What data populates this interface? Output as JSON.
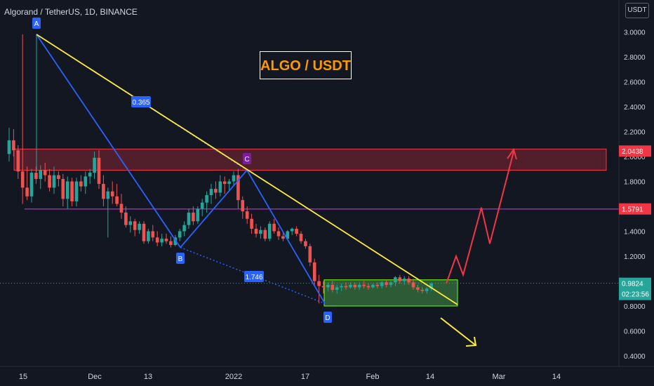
{
  "header": {
    "symbol_line": "Algorand / TetherUS, 1D, BINANCE"
  },
  "unit_badge": "USDT",
  "title_box": "ALGO / USDT",
  "colors": {
    "background": "#131722",
    "up": "#26a69a",
    "down": "#ef5350",
    "trendline": "#ffeb3b",
    "pattern_line": "#2962ff",
    "projection": "#f23645",
    "support_line": "#9c27b0",
    "resistance_zone": "#f23645",
    "support_zone": "#4caf50",
    "arrow_down": "#ffeb3b"
  },
  "chart_data": {
    "type": "candlestick",
    "y_axis": {
      "ticks": [
        "0.4000",
        "0.6000",
        "0.8000",
        "1.0000",
        "1.2000",
        "1.4000",
        "1.6000",
        "1.8000",
        "2.0000",
        "2.2000",
        "2.4000",
        "2.6000",
        "2.8000",
        "3.0000"
      ],
      "range": [
        0.35,
        3.2
      ]
    },
    "x_axis": {
      "ticks": [
        "15",
        "Dec",
        "13",
        "2022",
        "17",
        "Feb",
        "14",
        "Mar",
        "14"
      ]
    },
    "price_labels": [
      {
        "value": "2.0438",
        "kind": "resistance"
      },
      {
        "value": "1.5791",
        "kind": "support"
      },
      {
        "value": "0.9824",
        "kind": "last"
      },
      {
        "value": "02:23:56",
        "kind": "countdown"
      }
    ],
    "candles": [
      [
        2.02,
        2.23,
        1.96,
        2.13
      ],
      [
        2.13,
        2.22,
        2.0,
        2.05
      ],
      [
        2.05,
        2.09,
        1.82,
        1.88
      ],
      [
        1.88,
        2.98,
        1.62,
        1.75
      ],
      [
        1.75,
        1.92,
        1.65,
        1.68
      ],
      [
        1.68,
        1.9,
        1.63,
        1.87
      ],
      [
        1.87,
        1.92,
        1.78,
        1.82
      ],
      [
        1.82,
        1.93,
        1.74,
        1.89
      ],
      [
        1.89,
        1.95,
        1.8,
        1.85
      ],
      [
        1.85,
        1.9,
        1.72,
        1.75
      ],
      [
        1.75,
        1.92,
        1.7,
        1.85
      ],
      [
        1.85,
        1.88,
        1.76,
        1.82
      ],
      [
        1.82,
        1.86,
        1.6,
        1.66
      ],
      [
        1.66,
        1.84,
        1.58,
        1.8
      ],
      [
        1.8,
        1.83,
        1.6,
        1.64
      ],
      [
        1.64,
        1.83,
        1.6,
        1.8
      ],
      [
        1.8,
        1.85,
        1.72,
        1.76
      ],
      [
        1.76,
        1.88,
        1.7,
        1.84
      ],
      [
        1.84,
        1.9,
        1.78,
        1.87
      ],
      [
        1.87,
        2.04,
        1.82,
        1.99
      ],
      [
        1.99,
        2.05,
        1.74,
        1.78
      ],
      [
        1.78,
        1.85,
        1.6,
        1.66
      ],
      [
        1.66,
        1.75,
        1.35,
        1.72
      ],
      [
        1.72,
        1.8,
        1.62,
        1.68
      ],
      [
        1.68,
        1.78,
        1.6,
        1.62
      ],
      [
        1.62,
        1.7,
        1.5,
        1.55
      ],
      [
        1.55,
        1.6,
        1.43,
        1.45
      ],
      [
        1.45,
        1.52,
        1.39,
        1.48
      ],
      [
        1.48,
        1.5,
        1.36,
        1.41
      ],
      [
        1.41,
        1.48,
        1.38,
        1.46
      ],
      [
        1.46,
        1.48,
        1.3,
        1.32
      ],
      [
        1.32,
        1.42,
        1.3,
        1.4
      ],
      [
        1.4,
        1.45,
        1.32,
        1.35
      ],
      [
        1.35,
        1.4,
        1.28,
        1.31
      ],
      [
        1.31,
        1.38,
        1.28,
        1.34
      ],
      [
        1.34,
        1.38,
        1.3,
        1.32
      ],
      [
        1.32,
        1.36,
        1.27,
        1.29
      ],
      [
        1.29,
        1.37,
        1.28,
        1.35
      ],
      [
        1.35,
        1.42,
        1.32,
        1.4
      ],
      [
        1.4,
        1.48,
        1.36,
        1.45
      ],
      [
        1.45,
        1.58,
        1.42,
        1.55
      ],
      [
        1.55,
        1.6,
        1.45,
        1.48
      ],
      [
        1.48,
        1.6,
        1.46,
        1.58
      ],
      [
        1.58,
        1.66,
        1.52,
        1.63
      ],
      [
        1.63,
        1.72,
        1.55,
        1.69
      ],
      [
        1.69,
        1.78,
        1.62,
        1.74
      ],
      [
        1.74,
        1.8,
        1.66,
        1.71
      ],
      [
        1.71,
        1.85,
        1.68,
        1.8
      ],
      [
        1.8,
        1.84,
        1.7,
        1.78
      ],
      [
        1.78,
        1.82,
        1.72,
        1.8
      ],
      [
        1.8,
        1.88,
        1.76,
        1.85
      ],
      [
        1.85,
        1.9,
        1.58,
        1.65
      ],
      [
        1.65,
        1.68,
        1.5,
        1.56
      ],
      [
        1.56,
        1.6,
        1.46,
        1.5
      ],
      [
        1.5,
        1.54,
        1.38,
        1.42
      ],
      [
        1.42,
        1.46,
        1.35,
        1.38
      ],
      [
        1.38,
        1.44,
        1.34,
        1.41
      ],
      [
        1.41,
        1.43,
        1.32,
        1.34
      ],
      [
        1.34,
        1.48,
        1.32,
        1.46
      ],
      [
        1.46,
        1.5,
        1.38,
        1.4
      ],
      [
        1.4,
        1.43,
        1.33,
        1.36
      ],
      [
        1.36,
        1.4,
        1.32,
        1.34
      ],
      [
        1.34,
        1.41,
        1.33,
        1.4
      ],
      [
        1.4,
        1.43,
        1.37,
        1.42
      ],
      [
        1.42,
        1.44,
        1.36,
        1.38
      ],
      [
        1.38,
        1.4,
        1.3,
        1.32
      ],
      [
        1.32,
        1.34,
        1.26,
        1.28
      ],
      [
        1.28,
        1.3,
        1.12,
        1.15
      ],
      [
        1.15,
        1.18,
        0.97,
        1.0
      ],
      [
        1.0,
        1.05,
        0.82,
        0.96
      ],
      [
        0.96,
        1.0,
        0.9,
        0.95
      ],
      [
        0.95,
        0.99,
        0.92,
        0.97
      ],
      [
        0.97,
        1.0,
        0.91,
        0.93
      ],
      [
        0.93,
        0.97,
        0.9,
        0.95
      ],
      [
        0.95,
        0.98,
        0.92,
        0.96
      ],
      [
        0.96,
        0.99,
        0.93,
        0.95
      ],
      [
        0.95,
        0.99,
        0.94,
        0.97
      ],
      [
        0.97,
        0.99,
        0.93,
        0.95
      ],
      [
        0.95,
        0.99,
        0.93,
        0.97
      ],
      [
        0.97,
        1.0,
        0.94,
        0.96
      ],
      [
        0.96,
        0.98,
        0.93,
        0.95
      ],
      [
        0.95,
        0.98,
        0.94,
        0.97
      ],
      [
        0.97,
        0.99,
        0.94,
        0.96
      ],
      [
        0.96,
        1.0,
        0.94,
        0.99
      ],
      [
        0.99,
        1.01,
        0.95,
        0.97
      ],
      [
        0.97,
        1.0,
        0.95,
        0.99
      ],
      [
        0.99,
        1.04,
        0.96,
        1.03
      ],
      [
        1.03,
        1.05,
        0.98,
        1.0
      ],
      [
        1.0,
        1.04,
        0.97,
        1.02
      ],
      [
        1.02,
        1.04,
        0.97,
        0.99
      ],
      [
        0.99,
        1.02,
        0.93,
        0.95
      ],
      [
        0.95,
        0.97,
        0.91,
        0.93
      ],
      [
        0.93,
        0.95,
        0.9,
        0.92
      ],
      [
        0.92,
        0.95,
        0.9,
        0.94
      ],
      [
        0.94,
        0.99,
        0.92,
        0.98
      ]
    ],
    "zones": [
      {
        "name": "resistance",
        "y_range": [
          1.89,
          2.06
        ]
      },
      {
        "name": "support",
        "y_range": [
          0.8,
          1.01
        ]
      }
    ],
    "support_line": 1.5791,
    "last_price": 0.9824,
    "pattern_points": [
      {
        "label": "A",
        "value": 2.98
      },
      {
        "label": "B",
        "value": 1.27
      },
      {
        "label": "C",
        "value": 1.89
      },
      {
        "label": "D",
        "value": 0.82
      }
    ],
    "ratio_labels": [
      "0.365",
      "1.746"
    ],
    "projection_path": [
      0.98,
      1.2,
      1.05,
      1.59,
      1.3,
      2.04
    ]
  }
}
